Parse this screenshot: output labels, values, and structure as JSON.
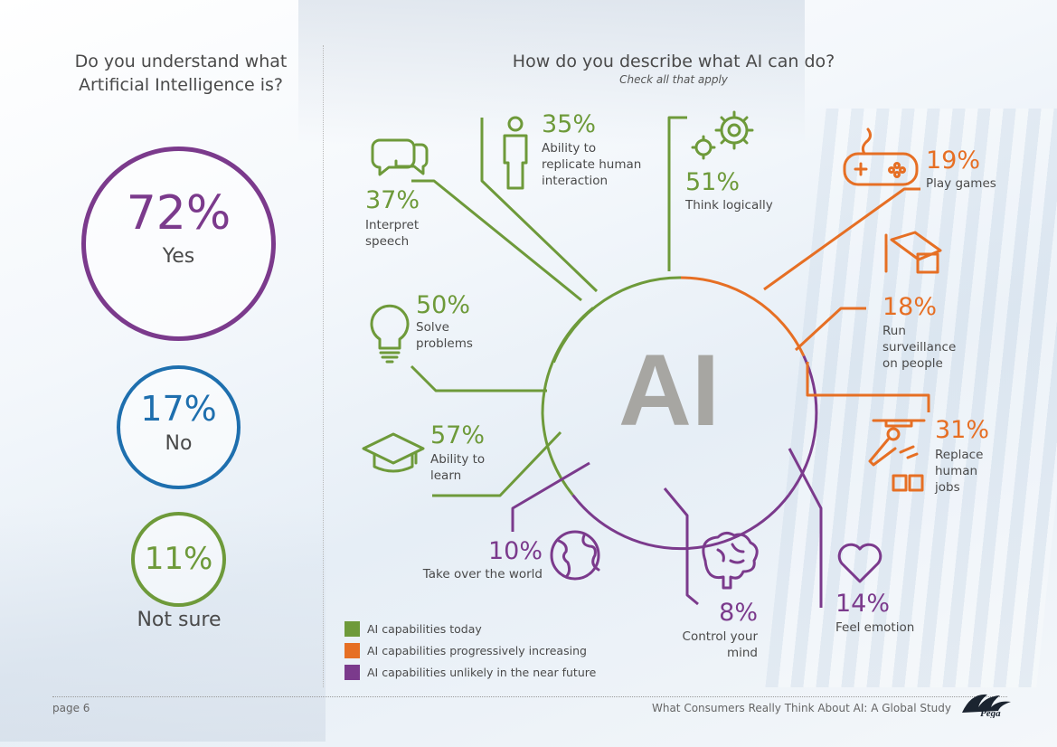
{
  "left_question": {
    "line1": "Do you understand what",
    "line2": "Artificial Intelligence is?"
  },
  "right_question": {
    "title": "How do you describe what AI can do?",
    "subtitle": "Check all that apply"
  },
  "center_label": "AI",
  "colors": {
    "today": "#6e9a3a",
    "increasing": "#e66f24",
    "unlikely": "#7b3a8c",
    "yes": "#7b3a8c",
    "no": "#1e6fae",
    "not_sure": "#6e9a3a",
    "center_text": "#a7a6a2"
  },
  "chart_data": [
    {
      "type": "pie",
      "title": "Do you understand what Artificial Intelligence is?",
      "categories": [
        "Yes",
        "No",
        "Not sure"
      ],
      "values": [
        72,
        17,
        11
      ],
      "value_labels": [
        "72%",
        "17%",
        "11%"
      ],
      "legend": "none"
    },
    {
      "type": "bar",
      "title": "How do you describe what AI can do?",
      "subtitle": "Check all that apply",
      "categories": [
        "Interpret speech",
        "Ability to replicate human interaction",
        "Think logically",
        "Play games",
        "Run surveillance on people",
        "Replace human jobs",
        "Feel emotion",
        "Control your mind",
        "Take over the world",
        "Ability to learn",
        "Solve problems"
      ],
      "values": [
        37,
        35,
        51,
        19,
        18,
        31,
        14,
        8,
        10,
        57,
        50
      ],
      "value_labels": [
        "37%",
        "35%",
        "51%",
        "19%",
        "18%",
        "31%",
        "14%",
        "8%",
        "10%",
        "57%",
        "50%"
      ],
      "groups": [
        "AI capabilities today",
        "AI capabilities today",
        "AI capabilities today",
        "AI capabilities progressively increasing",
        "AI capabilities progressively increasing",
        "AI capabilities progressively increasing",
        "AI capabilities unlikely in the near future",
        "AI capabilities unlikely in the near future",
        "AI capabilities unlikely in the near future",
        "AI capabilities today",
        "AI capabilities today"
      ],
      "legend": "bottom-left"
    }
  ],
  "understanding": [
    {
      "pct": "72%",
      "label": "Yes"
    },
    {
      "pct": "17%",
      "label": "No"
    },
    {
      "pct": "11%",
      "label": "Not sure"
    }
  ],
  "capabilities": {
    "interpret_speech": {
      "pct": "37%",
      "line1": "Interpret",
      "line2": "speech",
      "icon": "speech-bubbles-icon"
    },
    "replicate_human": {
      "pct": "35%",
      "line1": "Ability to",
      "line2": "replicate human",
      "line3": "interaction",
      "icon": "person-icon"
    },
    "think_logically": {
      "pct": "51%",
      "line1": "Think logically",
      "icon": "gears-icon"
    },
    "play_games": {
      "pct": "19%",
      "line1": "Play games",
      "icon": "gamepad-icon"
    },
    "surveillance": {
      "pct": "18%",
      "line1": "Run",
      "line2": "surveillance",
      "line3": "on people",
      "icon": "cctv-camera-icon"
    },
    "replace_jobs": {
      "pct": "31%",
      "line1": "Replace",
      "line2": "human",
      "line3": "jobs",
      "icon": "robot-arm-icon"
    },
    "feel_emotion": {
      "pct": "14%",
      "line1": "Feel emotion",
      "icon": "heart-icon"
    },
    "control_mind": {
      "pct": "8%",
      "line1": "Control your",
      "line2": "mind",
      "icon": "brain-icon"
    },
    "take_over": {
      "pct": "10%",
      "line1": "Take over the world",
      "icon": "globe-icon"
    },
    "ability_learn": {
      "pct": "57%",
      "line1": "Ability to",
      "line2": "learn",
      "icon": "graduation-cap-icon"
    },
    "solve_problems": {
      "pct": "50%",
      "line1": "Solve",
      "line2": "problems",
      "icon": "lightbulb-icon"
    }
  },
  "legend": [
    {
      "label": "AI capabilities today",
      "color": "#6e9a3a"
    },
    {
      "label": "AI capabilities progressively increasing",
      "color": "#e66f24"
    },
    {
      "label": "AI capabilities unlikely in the near future",
      "color": "#7b3a8c"
    }
  ],
  "footer": {
    "page": "page 6",
    "title": "What Consumers Really Think About AI: A Global Study",
    "logo_text": "Pega"
  }
}
